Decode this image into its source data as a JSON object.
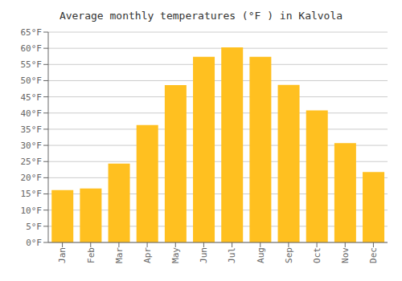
{
  "chart_data": {
    "type": "bar",
    "title": "Average monthly temperatures (°F ) in Kalvola",
    "categories": [
      "Jan",
      "Feb",
      "Mar",
      "Apr",
      "May",
      "Jun",
      "Jul",
      "Aug",
      "Sep",
      "Oct",
      "Nov",
      "Dec"
    ],
    "values": [
      16.2,
      16.7,
      24.4,
      36.3,
      48.6,
      57.4,
      60.3,
      57.4,
      48.7,
      40.8,
      30.7,
      21.8
    ],
    "color": "#FFC020",
    "ylim": [
      0,
      65
    ],
    "yticks": [
      {
        "value": 0,
        "label": "0°F"
      },
      {
        "value": 5,
        "label": "5°F"
      },
      {
        "value": 10,
        "label": "10°F"
      },
      {
        "value": 15,
        "label": "15°F"
      },
      {
        "value": 20,
        "label": "20°F"
      },
      {
        "value": 25,
        "label": "25°F"
      },
      {
        "value": 30,
        "label": "30°F"
      },
      {
        "value": 35,
        "label": "35°F"
      },
      {
        "value": 40,
        "label": "40°F"
      },
      {
        "value": 45,
        "label": "45°F"
      },
      {
        "value": 50,
        "label": "50°F"
      },
      {
        "value": 55,
        "label": "55°F"
      },
      {
        "value": 60,
        "label": "60°F"
      },
      {
        "value": 65,
        "label": "65°F"
      }
    ],
    "grid": true
  }
}
